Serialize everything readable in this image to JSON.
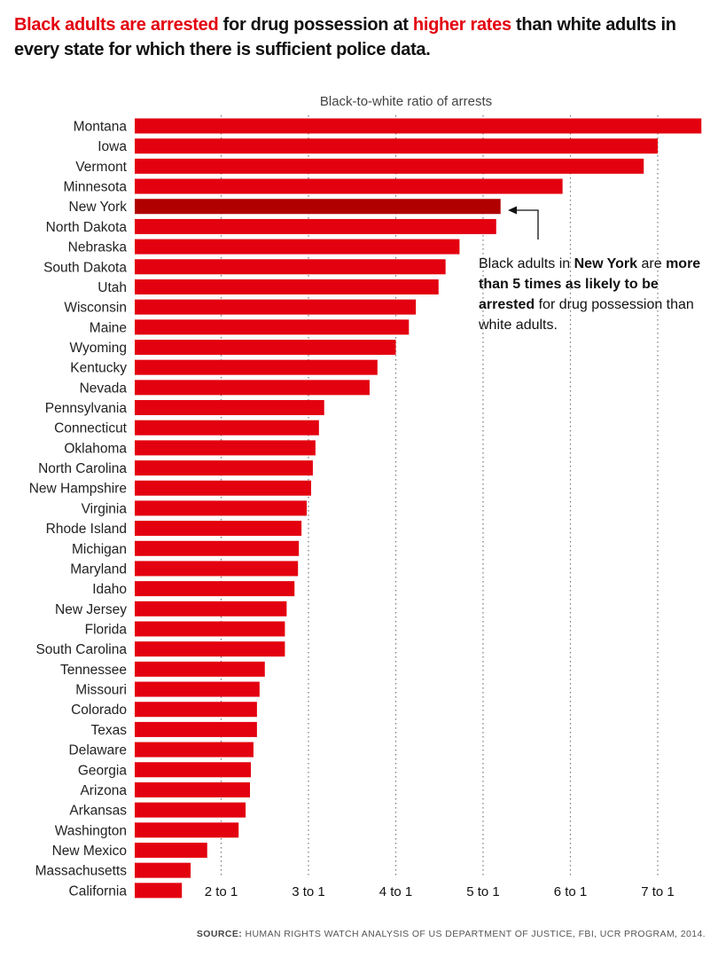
{
  "title": {
    "part1": "Black adults are arrested",
    "part2": " for drug possession at ",
    "part3": "higher rates",
    "part4": " than white adults in every state for which there is sufficient police data."
  },
  "annotation": {
    "t1": "Black adults in ",
    "t2": "New York",
    "t3": " are ",
    "t4": "more than 5 times as likely to be arrested",
    "t5": " for drug possession than white adults."
  },
  "source": {
    "label": "SOURCE:",
    "text": " HUMAN RIGHTS WATCH ANALYSIS OF US DEPARTMENT OF JUSTICE, FBI, UCR PROGRAM, 2014."
  },
  "chart_data": {
    "type": "bar",
    "orientation": "horizontal",
    "title": "Black-to-white ratio of arrests",
    "xlabel": "",
    "ylabel": "",
    "xlim": [
      1,
      7.55
    ],
    "ticks": [
      2,
      3,
      4,
      5,
      6,
      7
    ],
    "tick_labels": [
      "2 to 1",
      "3 to 1",
      "4 to 1",
      "5 to 1",
      "6 to 1",
      "7 to 1"
    ],
    "grid": "vertical dotted",
    "bar_color": "#e3000f",
    "highlight_color": "#b00000",
    "highlight": "New York",
    "categories": [
      "Montana",
      "Iowa",
      "Vermont",
      "Minnesota",
      "New York",
      "North Dakota",
      "Nebraska",
      "South Dakota",
      "Utah",
      "Wisconsin",
      "Maine",
      "Wyoming",
      "Kentucky",
      "Nevada",
      "Pennsylvania",
      "Connecticut",
      "Oklahoma",
      "North Carolina",
      "New Hampshire",
      "Virginia",
      "Rhode Island",
      "Michigan",
      "Maryland",
      "Idaho",
      "New Jersey",
      "Florida",
      "South Carolina",
      "Tennessee",
      "Missouri",
      "Colorado",
      "Texas",
      "Delaware",
      "Georgia",
      "Arizona",
      "Arkansas",
      "Washington",
      "New Mexico",
      "Massachusetts",
      "California"
    ],
    "values": [
      7.5,
      7.0,
      6.84,
      5.91,
      5.2,
      5.15,
      4.73,
      4.57,
      4.49,
      4.23,
      4.15,
      4.0,
      3.79,
      3.7,
      3.18,
      3.12,
      3.08,
      3.05,
      3.03,
      2.98,
      2.92,
      2.89,
      2.88,
      2.84,
      2.75,
      2.73,
      2.73,
      2.5,
      2.44,
      2.41,
      2.41,
      2.37,
      2.34,
      2.33,
      2.28,
      2.2,
      1.84,
      1.65,
      1.55
    ]
  }
}
